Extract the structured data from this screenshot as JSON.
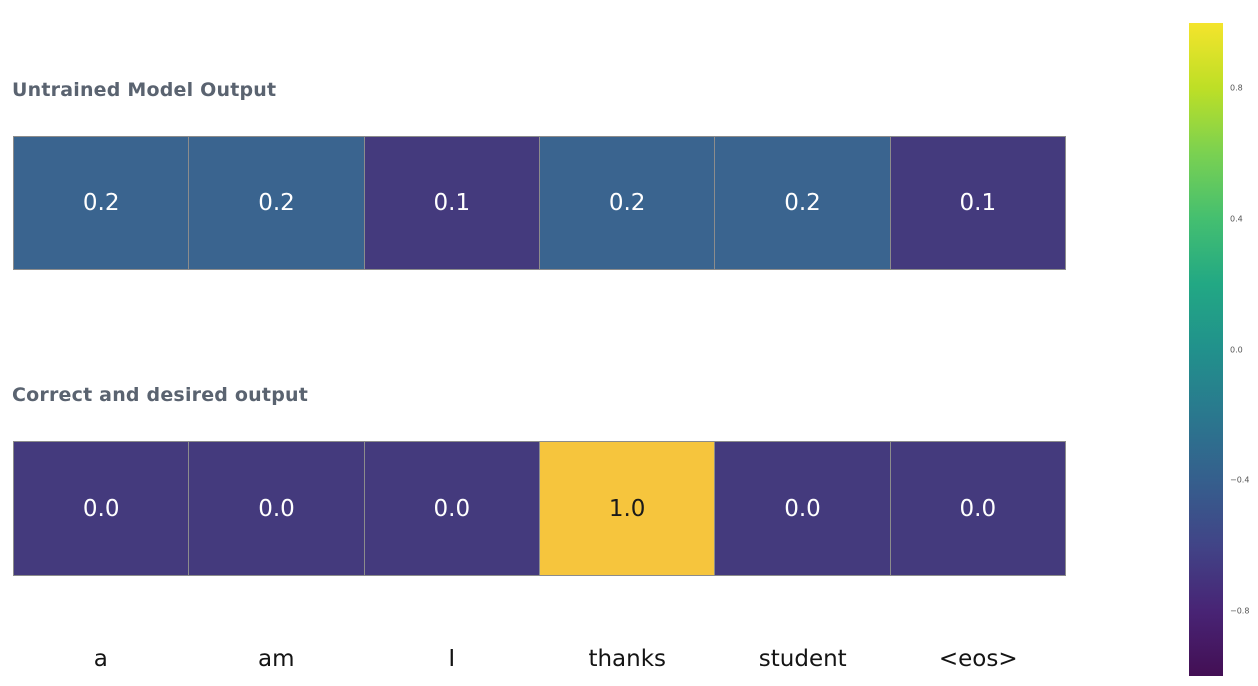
{
  "chart_data": {
    "type": "heatmap",
    "categories": [
      "a",
      "am",
      "I",
      "thanks",
      "student",
      "<eos>"
    ],
    "rows": [
      {
        "title": "Untrained Model Output",
        "values": [
          0.2,
          0.2,
          0.1,
          0.2,
          0.2,
          0.1
        ],
        "cells": [
          {
            "label": "0.2",
            "bg": "#3a648f",
            "fg": "#ffffff"
          },
          {
            "label": "0.2",
            "bg": "#3a648f",
            "fg": "#ffffff"
          },
          {
            "label": "0.1",
            "bg": "#443a7d",
            "fg": "#ffffff"
          },
          {
            "label": "0.2",
            "bg": "#3a648f",
            "fg": "#ffffff"
          },
          {
            "label": "0.2",
            "bg": "#3a648f",
            "fg": "#ffffff"
          },
          {
            "label": "0.1",
            "bg": "#443a7d",
            "fg": "#ffffff"
          }
        ]
      },
      {
        "title": "Correct and desired output",
        "values": [
          0.0,
          0.0,
          0.0,
          1.0,
          0.0,
          0.0
        ],
        "cells": [
          {
            "label": "0.0",
            "bg": "#443a7d",
            "fg": "#ffffff"
          },
          {
            "label": "0.0",
            "bg": "#443a7d",
            "fg": "#ffffff"
          },
          {
            "label": "0.0",
            "bg": "#443a7d",
            "fg": "#ffffff"
          },
          {
            "label": "1.0",
            "bg": "#f6c53d",
            "fg": "#1a1a1a"
          },
          {
            "label": "0.0",
            "bg": "#443a7d",
            "fg": "#ffffff"
          },
          {
            "label": "0.0",
            "bg": "#443a7d",
            "fg": "#ffffff"
          }
        ]
      }
    ],
    "colorbar": {
      "colormap": "viridis",
      "min": -1.0,
      "max": 1.0,
      "ticks": [
        {
          "value": 0.8,
          "label": "0.8"
        },
        {
          "value": 0.4,
          "label": "0.4"
        },
        {
          "value": 0.0,
          "label": "0.0"
        },
        {
          "value": -0.4,
          "label": "−0.4"
        },
        {
          "value": -0.8,
          "label": "−0.8"
        }
      ],
      "gradient_top_to_bottom": [
        "#f4e42c",
        "#bddf26",
        "#7ad151",
        "#44bf70",
        "#22a884",
        "#21918c",
        "#2a788e",
        "#355f8d",
        "#414487",
        "#482475",
        "#430f54"
      ]
    },
    "grid": false,
    "legend": false,
    "xlabel": "",
    "ylabel": ""
  }
}
